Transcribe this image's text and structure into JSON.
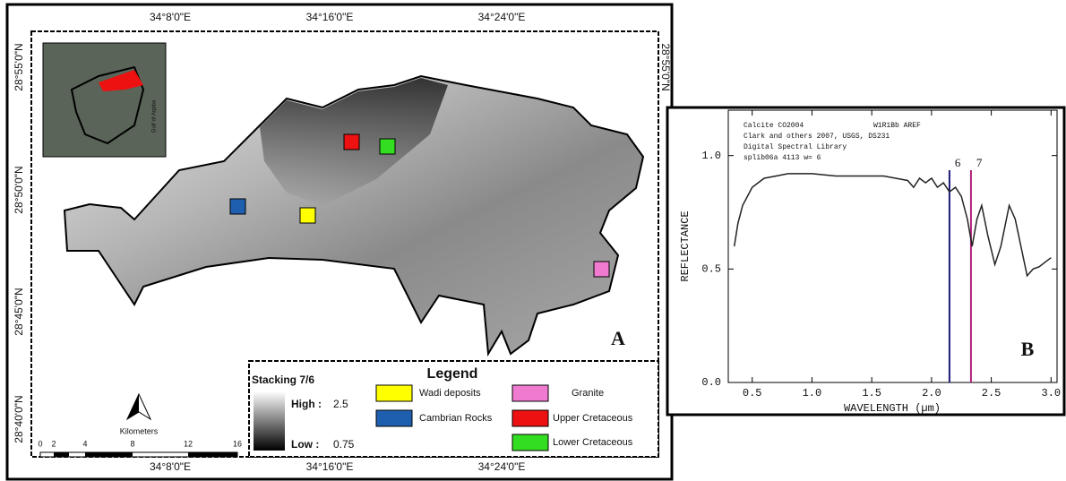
{
  "map": {
    "panel_label": "A",
    "longitudes": [
      "34°8'0\"E",
      "34°16'0\"E",
      "34°24'0\"E"
    ],
    "latitudes": [
      "28°55'0\"N",
      "28°50'0\"N",
      "28°45'0\"N",
      "28°40'0\"N"
    ],
    "inset": {
      "label": "Gulf of Aqaba"
    },
    "legend": {
      "title": "Legend",
      "stacking": "Stacking 7/6",
      "high_label": "High :",
      "high_value": "2.5",
      "low_label": "Low :",
      "low_value": "0.75",
      "items": [
        {
          "name": "Wadi deposits",
          "color": "#ffff00"
        },
        {
          "name": "Cambrian Rocks",
          "color": "#1f5fb0"
        },
        {
          "name": "Granite",
          "color": "#f07ad0"
        },
        {
          "name": "Upper Cretaceous",
          "color": "#ee1111"
        },
        {
          "name": "Lower Cretaceous",
          "color": "#33dd22"
        }
      ]
    },
    "scale": {
      "unit": "Kilometers",
      "ticks": [
        "0",
        "2",
        "4",
        "8",
        "12",
        "16"
      ]
    }
  },
  "chart_data": {
    "type": "line",
    "panel_label": "B",
    "header": [
      "Calcite CO2004",
      "W1R1Bb AREF",
      "Clark and others 2007, USGS, DS231",
      "Digital Spectral Library",
      "splib06a 4113 w= 6"
    ],
    "x_label": "WAVELENGTH (µm)",
    "y_label": "REFLECTANCE",
    "xlim": [
      0.3,
      3.05
    ],
    "ylim": [
      0,
      1.2
    ],
    "xticks": [
      0.5,
      {
        "value": 1,
        "label": "1.0"
      },
      1.5,
      {
        "value": 2,
        "label": "2.0"
      },
      2.5,
      {
        "value": 3,
        "label": "3.0"
      }
    ],
    "yticks": [
      {
        "value": 0,
        "label": "0.0"
      },
      0.5,
      {
        "value": 1,
        "label": "1.0"
      }
    ],
    "x": [
      0.35,
      0.38,
      0.42,
      0.5,
      0.6,
      0.7,
      0.8,
      1.0,
      1.2,
      1.4,
      1.6,
      1.7,
      1.8,
      1.85,
      1.9,
      1.95,
      2.0,
      2.05,
      2.1,
      2.15,
      2.2,
      2.25,
      2.3,
      2.34,
      2.38,
      2.42,
      2.47,
      2.53,
      2.58,
      2.65,
      2.7,
      2.8,
      2.85,
      2.9,
      2.95,
      3.0
    ],
    "series": [
      {
        "color": "#222222",
        "values": [
          0.6,
          0.7,
          0.78,
          0.86,
          0.9,
          0.91,
          0.92,
          0.92,
          0.91,
          0.91,
          0.91,
          0.9,
          0.89,
          0.86,
          0.9,
          0.88,
          0.9,
          0.86,
          0.88,
          0.84,
          0.86,
          0.82,
          0.72,
          0.6,
          0.72,
          0.78,
          0.65,
          0.52,
          0.6,
          0.78,
          0.72,
          0.47,
          0.5,
          0.51,
          0.53,
          0.55
        ]
      }
    ],
    "markers": [
      {
        "label": "6",
        "x": 2.15,
        "color": "#1a1a7a"
      },
      {
        "label": "7",
        "x": 2.33,
        "color": "#b0207a"
      }
    ]
  }
}
